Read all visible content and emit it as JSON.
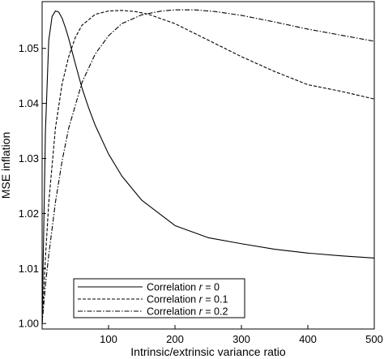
{
  "chart_data": {
    "type": "line",
    "title": "",
    "xlabel": "Intrinsic/extrinsic variance ratio",
    "ylabel": "MSE inflation",
    "xlim": [
      0,
      500
    ],
    "ylim": [
      0.999,
      1.0585
    ],
    "xticks": [
      100,
      200,
      300,
      400,
      500
    ],
    "yticks": [
      1.0,
      1.01,
      1.02,
      1.03,
      1.04,
      1.05
    ],
    "ytick_labels": [
      "1.00",
      "1.01",
      "1.02",
      "1.03",
      "1.04",
      "1.05"
    ],
    "grid": false,
    "legend_position": "bottom-left",
    "series": [
      {
        "name": "Correlation r = 0",
        "legend_prefix": "Correlation",
        "legend_symbol": "r",
        "legend_value": "= 0",
        "line_style": "solid",
        "x": [
          0,
          5,
          10,
          15,
          20,
          25,
          30,
          35,
          40,
          50,
          60,
          70,
          80,
          100,
          120,
          150,
          200,
          250,
          300,
          350,
          400,
          450,
          500
        ],
        "y": [
          1.0,
          1.035,
          1.0515,
          1.0558,
          1.0568,
          1.0566,
          1.0555,
          1.0538,
          1.0518,
          1.0472,
          1.0428,
          1.0392,
          1.036,
          1.0308,
          1.0268,
          1.0224,
          1.0178,
          1.0156,
          1.0145,
          1.0135,
          1.0128,
          1.0123,
          1.0119
        ]
      },
      {
        "name": "Correlation r = 0.1",
        "legend_prefix": "Correlation",
        "legend_symbol": "r",
        "legend_value": "= 0.1",
        "line_style": "dashed",
        "x": [
          0,
          5,
          10,
          20,
          30,
          40,
          50,
          60,
          80,
          100,
          120,
          140,
          160,
          200,
          250,
          300,
          350,
          400,
          450,
          500
        ],
        "y": [
          1.0,
          1.012,
          1.022,
          1.0355,
          1.0435,
          1.0485,
          1.052,
          1.0542,
          1.0562,
          1.0568,
          1.0569,
          1.0567,
          1.0562,
          1.0545,
          1.0515,
          1.0485,
          1.0458,
          1.0434,
          1.0422,
          1.0408
        ]
      },
      {
        "name": "Correlation r = 0.2",
        "legend_prefix": "Correlation",
        "legend_symbol": "r",
        "legend_value": "= 0.2",
        "line_style": "dashdot",
        "x": [
          0,
          5,
          10,
          20,
          30,
          40,
          60,
          80,
          100,
          120,
          150,
          180,
          200,
          230,
          260,
          300,
          350,
          400,
          450,
          500
        ],
        "y": [
          1.0,
          1.007,
          1.0125,
          1.022,
          1.0295,
          1.0355,
          1.0438,
          1.049,
          1.0523,
          1.0545,
          1.0561,
          1.0568,
          1.057,
          1.057,
          1.0567,
          1.056,
          1.0548,
          1.0535,
          1.0524,
          1.0513
        ]
      }
    ]
  }
}
